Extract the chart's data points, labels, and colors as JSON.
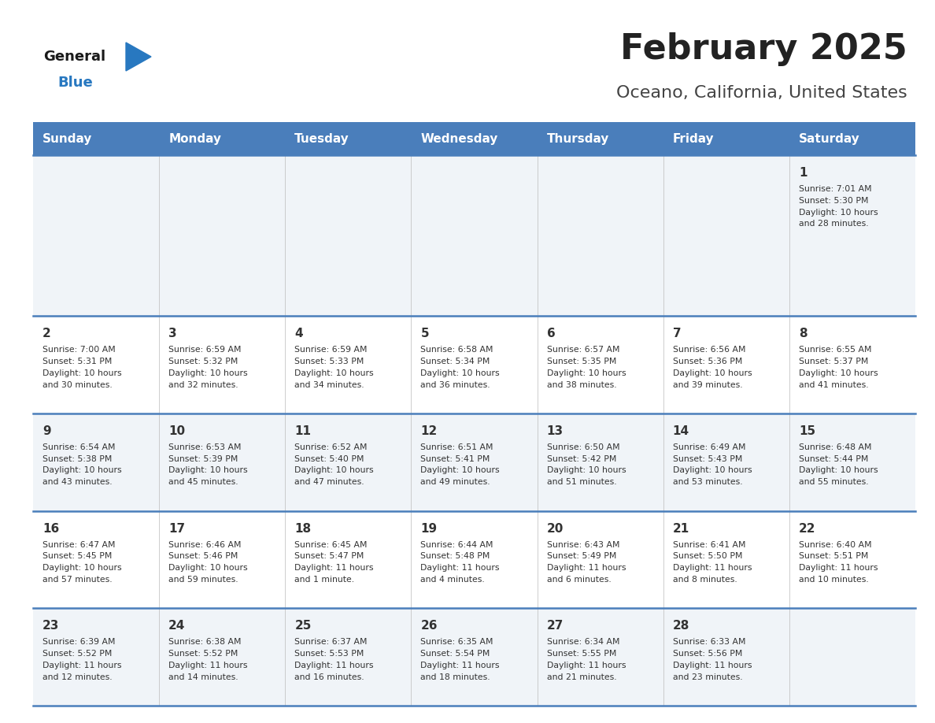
{
  "title": "February 2025",
  "subtitle": "Oceano, California, United States",
  "days_of_week": [
    "Sunday",
    "Monday",
    "Tuesday",
    "Wednesday",
    "Thursday",
    "Friday",
    "Saturday"
  ],
  "header_bg": "#4A7EBB",
  "header_text": "#FFFFFF",
  "row_bg_odd": "#F0F4F8",
  "row_bg_even": "#FFFFFF",
  "cell_text": "#333333",
  "title_color": "#222222",
  "subtitle_color": "#444444",
  "divider_color": "#4A7EBB",
  "logo_general_color": "#1a1a1a",
  "logo_blue_color": "#2878C0",
  "calendar_data": [
    [
      {
        "day": null,
        "info": ""
      },
      {
        "day": null,
        "info": ""
      },
      {
        "day": null,
        "info": ""
      },
      {
        "day": null,
        "info": ""
      },
      {
        "day": null,
        "info": ""
      },
      {
        "day": null,
        "info": ""
      },
      {
        "day": 1,
        "info": "Sunrise: 7:01 AM\nSunset: 5:30 PM\nDaylight: 10 hours\nand 28 minutes."
      }
    ],
    [
      {
        "day": 2,
        "info": "Sunrise: 7:00 AM\nSunset: 5:31 PM\nDaylight: 10 hours\nand 30 minutes."
      },
      {
        "day": 3,
        "info": "Sunrise: 6:59 AM\nSunset: 5:32 PM\nDaylight: 10 hours\nand 32 minutes."
      },
      {
        "day": 4,
        "info": "Sunrise: 6:59 AM\nSunset: 5:33 PM\nDaylight: 10 hours\nand 34 minutes."
      },
      {
        "day": 5,
        "info": "Sunrise: 6:58 AM\nSunset: 5:34 PM\nDaylight: 10 hours\nand 36 minutes."
      },
      {
        "day": 6,
        "info": "Sunrise: 6:57 AM\nSunset: 5:35 PM\nDaylight: 10 hours\nand 38 minutes."
      },
      {
        "day": 7,
        "info": "Sunrise: 6:56 AM\nSunset: 5:36 PM\nDaylight: 10 hours\nand 39 minutes."
      },
      {
        "day": 8,
        "info": "Sunrise: 6:55 AM\nSunset: 5:37 PM\nDaylight: 10 hours\nand 41 minutes."
      }
    ],
    [
      {
        "day": 9,
        "info": "Sunrise: 6:54 AM\nSunset: 5:38 PM\nDaylight: 10 hours\nand 43 minutes."
      },
      {
        "day": 10,
        "info": "Sunrise: 6:53 AM\nSunset: 5:39 PM\nDaylight: 10 hours\nand 45 minutes."
      },
      {
        "day": 11,
        "info": "Sunrise: 6:52 AM\nSunset: 5:40 PM\nDaylight: 10 hours\nand 47 minutes."
      },
      {
        "day": 12,
        "info": "Sunrise: 6:51 AM\nSunset: 5:41 PM\nDaylight: 10 hours\nand 49 minutes."
      },
      {
        "day": 13,
        "info": "Sunrise: 6:50 AM\nSunset: 5:42 PM\nDaylight: 10 hours\nand 51 minutes."
      },
      {
        "day": 14,
        "info": "Sunrise: 6:49 AM\nSunset: 5:43 PM\nDaylight: 10 hours\nand 53 minutes."
      },
      {
        "day": 15,
        "info": "Sunrise: 6:48 AM\nSunset: 5:44 PM\nDaylight: 10 hours\nand 55 minutes."
      }
    ],
    [
      {
        "day": 16,
        "info": "Sunrise: 6:47 AM\nSunset: 5:45 PM\nDaylight: 10 hours\nand 57 minutes."
      },
      {
        "day": 17,
        "info": "Sunrise: 6:46 AM\nSunset: 5:46 PM\nDaylight: 10 hours\nand 59 minutes."
      },
      {
        "day": 18,
        "info": "Sunrise: 6:45 AM\nSunset: 5:47 PM\nDaylight: 11 hours\nand 1 minute."
      },
      {
        "day": 19,
        "info": "Sunrise: 6:44 AM\nSunset: 5:48 PM\nDaylight: 11 hours\nand 4 minutes."
      },
      {
        "day": 20,
        "info": "Sunrise: 6:43 AM\nSunset: 5:49 PM\nDaylight: 11 hours\nand 6 minutes."
      },
      {
        "day": 21,
        "info": "Sunrise: 6:41 AM\nSunset: 5:50 PM\nDaylight: 11 hours\nand 8 minutes."
      },
      {
        "day": 22,
        "info": "Sunrise: 6:40 AM\nSunset: 5:51 PM\nDaylight: 11 hours\nand 10 minutes."
      }
    ],
    [
      {
        "day": 23,
        "info": "Sunrise: 6:39 AM\nSunset: 5:52 PM\nDaylight: 11 hours\nand 12 minutes."
      },
      {
        "day": 24,
        "info": "Sunrise: 6:38 AM\nSunset: 5:52 PM\nDaylight: 11 hours\nand 14 minutes."
      },
      {
        "day": 25,
        "info": "Sunrise: 6:37 AM\nSunset: 5:53 PM\nDaylight: 11 hours\nand 16 minutes."
      },
      {
        "day": 26,
        "info": "Sunrise: 6:35 AM\nSunset: 5:54 PM\nDaylight: 11 hours\nand 18 minutes."
      },
      {
        "day": 27,
        "info": "Sunrise: 6:34 AM\nSunset: 5:55 PM\nDaylight: 11 hours\nand 21 minutes."
      },
      {
        "day": 28,
        "info": "Sunrise: 6:33 AM\nSunset: 5:56 PM\nDaylight: 11 hours\nand 23 minutes."
      },
      {
        "day": null,
        "info": ""
      }
    ]
  ],
  "row_heights_ratio": [
    1.65,
    1.0,
    1.0,
    1.0,
    1.0
  ]
}
